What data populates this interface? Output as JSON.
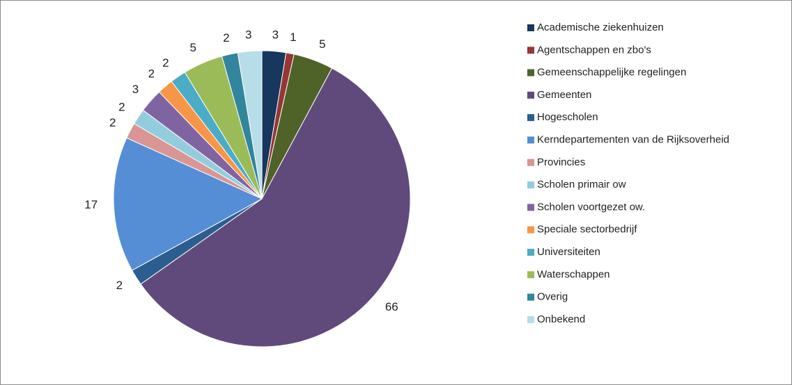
{
  "chart_data": {
    "type": "pie",
    "categories": [
      "Academische ziekenhuizen",
      "Agentschappen en zbo's",
      "Gemeenschappelijke regelingen",
      "Gemeenten",
      "Hogescholen",
      "Kerndepartementen van de Rijksoverheid",
      "Provincies",
      "Scholen primair ow",
      "Scholen voortgezet ow.",
      "Speciale sectorbedrijf",
      "Universiteiten",
      "Waterschappen",
      "Overig",
      "Onbekend"
    ],
    "values": [
      3,
      1,
      5,
      66,
      2,
      17,
      2,
      2,
      3,
      2,
      2,
      5,
      2,
      3
    ],
    "colors": [
      "#17375e",
      "#953735",
      "#4f6228",
      "#604a7b",
      "#2c5d8f",
      "#558ed5",
      "#d99694",
      "#93cddd",
      "#8064a2",
      "#f79646",
      "#4bacc6",
      "#9bbb59",
      "#31859c",
      "#b7dde8"
    ],
    "legend": "right"
  }
}
